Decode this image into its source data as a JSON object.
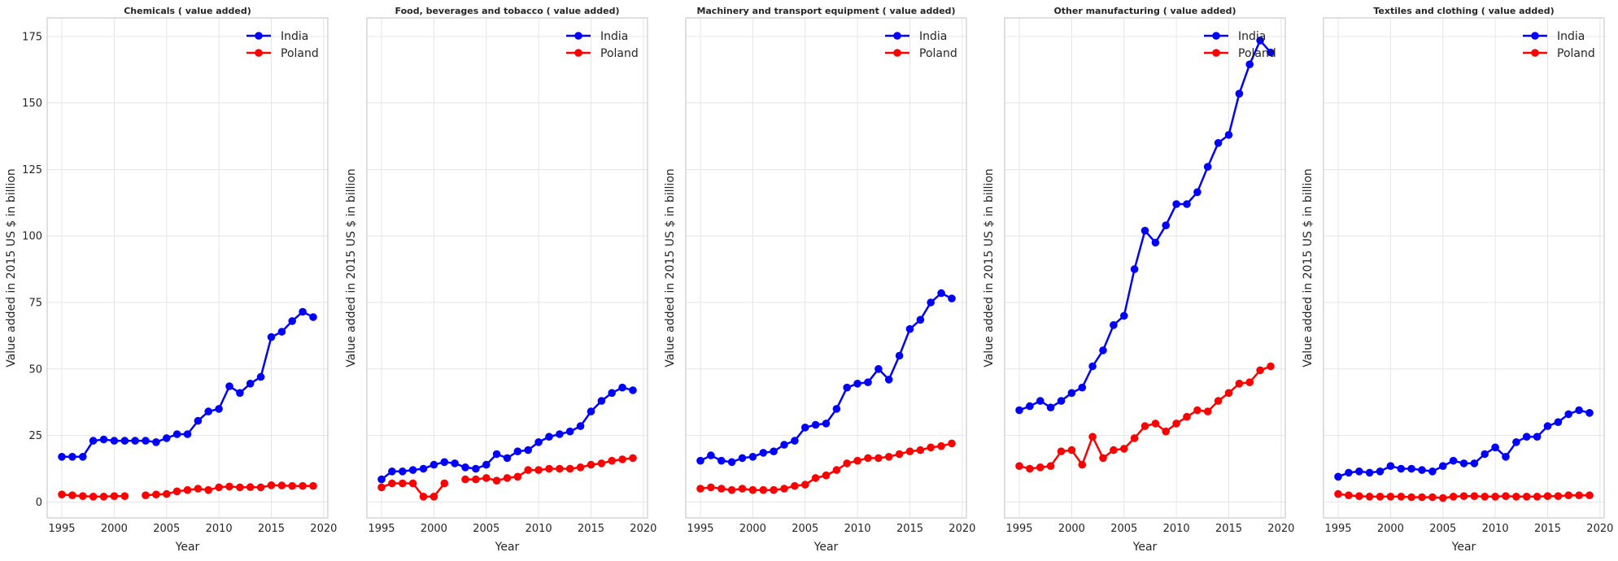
{
  "chart_data": [
    {
      "type": "line",
      "title": "Chemicals ( value added)",
      "xlabel": "Year",
      "ylabel": "Value added in 2015 US $ in billion",
      "x": [
        1995,
        1996,
        1997,
        1998,
        1999,
        2000,
        2001,
        2002,
        2003,
        2004,
        2005,
        2006,
        2007,
        2008,
        2009,
        2010,
        2011,
        2012,
        2013,
        2014,
        2015,
        2016,
        2017,
        2018,
        2019
      ],
      "series": [
        {
          "name": "India",
          "color": "#0000ff",
          "values": [
            17,
            17,
            17,
            23,
            23.5,
            23,
            23,
            23,
            23,
            22.5,
            24,
            25.5,
            25.5,
            30.5,
            34,
            35,
            43.5,
            41,
            44.5,
            47,
            62,
            64,
            68,
            71.5,
            69.5
          ]
        },
        {
          "name": "Poland",
          "color": "#ff0000",
          "values": [
            2.8,
            2.5,
            2.2,
            2,
            2,
            2.2,
            2.2,
            null,
            2.5,
            2.8,
            3,
            4,
            4.5,
            5,
            4.5,
            5.5,
            5.8,
            5.5,
            5.6,
            5.5,
            6.3,
            6.2,
            6,
            6,
            6
          ]
        }
      ]
    },
    {
      "type": "line",
      "title": "Food, beverages and tobacco ( value added)",
      "xlabel": "Year",
      "ylabel": "Value added in 2015 US $ in billion",
      "x": [
        1995,
        1996,
        1997,
        1998,
        1999,
        2000,
        2001,
        2002,
        2003,
        2004,
        2005,
        2006,
        2007,
        2008,
        2009,
        2010,
        2011,
        2012,
        2013,
        2014,
        2015,
        2016,
        2017,
        2018,
        2019
      ],
      "series": [
        {
          "name": "India",
          "color": "#0000ff",
          "values": [
            8.5,
            11.5,
            11.5,
            12,
            12.5,
            14,
            15,
            14.5,
            13,
            12.5,
            14,
            18,
            16.5,
            19,
            19.5,
            22.5,
            24.5,
            25.5,
            26.5,
            28.5,
            34,
            38,
            41,
            43,
            42
          ]
        },
        {
          "name": "Poland",
          "color": "#ff0000",
          "values": [
            5.5,
            7,
            7,
            7,
            2,
            2,
            7,
            null,
            8.5,
            8.5,
            9,
            8,
            9,
            9.5,
            12,
            12,
            12.5,
            12.5,
            12.5,
            13,
            14,
            14.5,
            15.5,
            16,
            16.5
          ]
        }
      ]
    },
    {
      "type": "line",
      "title": "Machinery and transport equipment ( value added)",
      "xlabel": "Year",
      "ylabel": "Value added in 2015 US $ in billion",
      "x": [
        1995,
        1996,
        1997,
        1998,
        1999,
        2000,
        2001,
        2002,
        2003,
        2004,
        2005,
        2006,
        2007,
        2008,
        2009,
        2010,
        2011,
        2012,
        2013,
        2014,
        2015,
        2016,
        2017,
        2018,
        2019
      ],
      "series": [
        {
          "name": "India",
          "color": "#0000ff",
          "values": [
            15.5,
            17.5,
            15.5,
            15,
            16.5,
            17,
            18.5,
            19,
            21.5,
            23,
            28,
            29,
            29.5,
            35,
            43,
            44.5,
            45,
            50,
            46,
            55,
            65,
            68.5,
            75,
            78.5,
            76.5
          ]
        },
        {
          "name": "Poland",
          "color": "#ff0000",
          "values": [
            5,
            5.5,
            5,
            4.5,
            5,
            4.5,
            4.5,
            4.5,
            5,
            6,
            6.5,
            9,
            10,
            12,
            14.5,
            15.5,
            16.5,
            16.5,
            17,
            18,
            19,
            19.5,
            20.5,
            21,
            22
          ]
        }
      ]
    },
    {
      "type": "line",
      "title": "Other manufacturing ( value added)",
      "xlabel": "Year",
      "ylabel": "Value added in 2015 US $ in billion",
      "x": [
        1995,
        1996,
        1997,
        1998,
        1999,
        2000,
        2001,
        2002,
        2003,
        2004,
        2005,
        2006,
        2007,
        2008,
        2009,
        2010,
        2011,
        2012,
        2013,
        2014,
        2015,
        2016,
        2017,
        2018,
        2019
      ],
      "series": [
        {
          "name": "India",
          "color": "#0000ff",
          "values": [
            34.5,
            36,
            38,
            35.5,
            38,
            41,
            43,
            51,
            57,
            66.5,
            70,
            87.5,
            102,
            97.5,
            104,
            112,
            112,
            116.5,
            126,
            135,
            138,
            153.5,
            164.5,
            173.5,
            169
          ]
        },
        {
          "name": "Poland",
          "color": "#ff0000",
          "values": [
            13.5,
            12.5,
            13,
            13.5,
            19,
            19.5,
            14,
            24.5,
            16.5,
            19.5,
            20,
            24,
            28.5,
            29.5,
            26.5,
            29.5,
            32,
            34.5,
            34,
            38,
            41,
            44.5,
            45,
            49.5,
            51
          ]
        }
      ]
    },
    {
      "type": "line",
      "title": "Textiles and clothing ( value added)",
      "xlabel": "Year",
      "ylabel": "Value added in 2015 US $ in billion",
      "x": [
        1995,
        1996,
        1997,
        1998,
        1999,
        2000,
        2001,
        2002,
        2003,
        2004,
        2005,
        2006,
        2007,
        2008,
        2009,
        2010,
        2011,
        2012,
        2013,
        2014,
        2015,
        2016,
        2017,
        2018,
        2019
      ],
      "series": [
        {
          "name": "India",
          "color": "#0000ff",
          "values": [
            9.5,
            11,
            11.5,
            11,
            11.5,
            13.5,
            12.5,
            12.5,
            12,
            11.5,
            13.5,
            15.5,
            14.5,
            14.5,
            18,
            20.5,
            17,
            22.5,
            24.5,
            24.5,
            28.5,
            30,
            33,
            34.5,
            33.5
          ]
        },
        {
          "name": "Poland",
          "color": "#ff0000",
          "values": [
            3,
            2.5,
            2.2,
            2,
            2,
            2,
            2,
            1.8,
            1.8,
            1.8,
            1.5,
            2,
            2.2,
            2.2,
            2,
            2,
            2.2,
            2,
            2,
            2,
            2.2,
            2.2,
            2.5,
            2.5,
            2.5
          ]
        }
      ]
    }
  ],
  "shared_axes": {
    "xlim": [
      1993.6,
      2020.4
    ],
    "xticks": [
      1995,
      2000,
      2005,
      2010,
      2015,
      2020
    ],
    "ylim": [
      -6,
      182
    ],
    "yticks": [
      0,
      25,
      50,
      75,
      100,
      125,
      150,
      175
    ],
    "grid": true,
    "legend_position": "top-right"
  }
}
